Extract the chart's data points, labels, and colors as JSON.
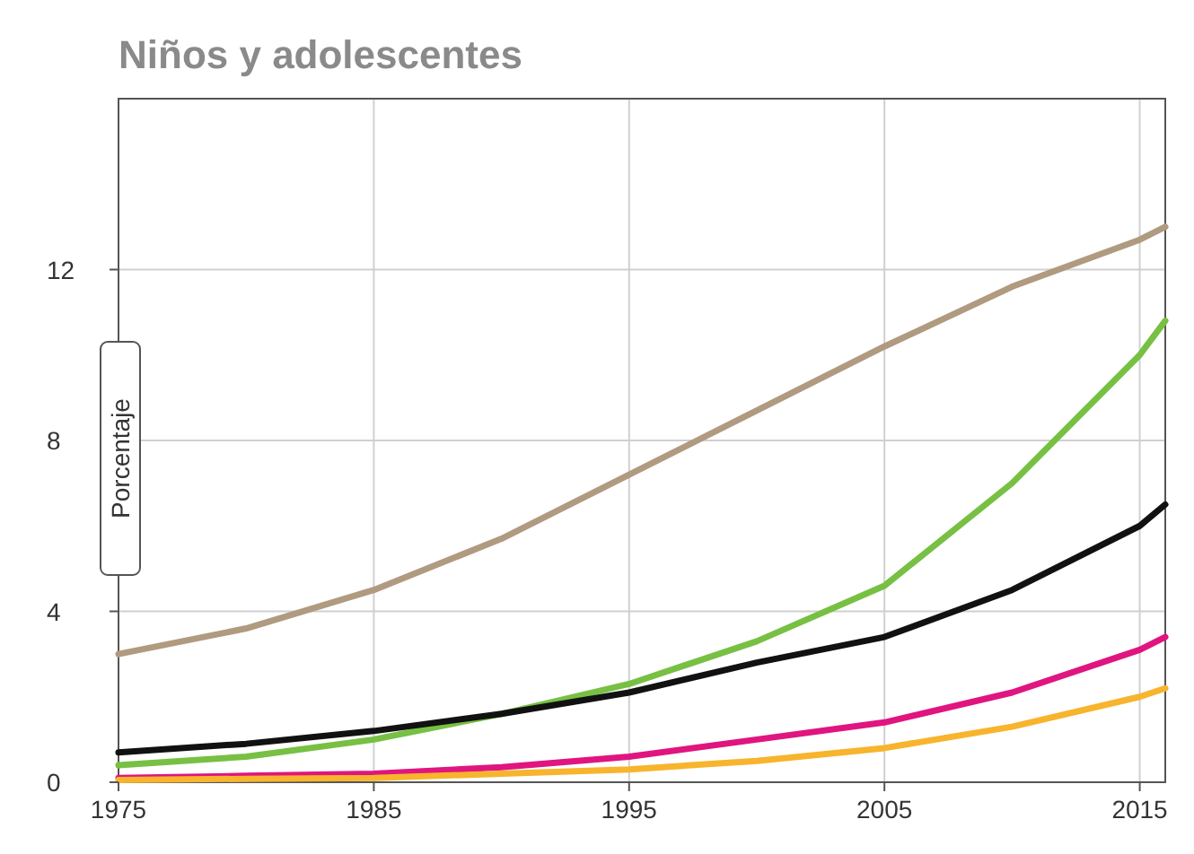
{
  "chart_data": {
    "type": "line",
    "title": "Niños y adolescentes",
    "ylabel": "Porcentaje",
    "x": [
      1975,
      1980,
      1985,
      1990,
      1995,
      2000,
      2005,
      2010,
      2015,
      2016
    ],
    "series": [
      {
        "color": "#b09a80",
        "values": [
          3.0,
          3.6,
          4.5,
          5.7,
          7.2,
          8.7,
          10.2,
          11.6,
          12.7,
          13.0
        ]
      },
      {
        "color": "#77c043",
        "values": [
          0.4,
          0.6,
          1.0,
          1.6,
          2.3,
          3.3,
          4.6,
          7.0,
          10.0,
          10.8
        ]
      },
      {
        "color": "#111111",
        "values": [
          0.7,
          0.9,
          1.2,
          1.6,
          2.1,
          2.8,
          3.4,
          4.5,
          6.0,
          6.5
        ]
      },
      {
        "color": "#e0157f",
        "values": [
          0.1,
          0.15,
          0.2,
          0.35,
          0.6,
          1.0,
          1.4,
          2.1,
          3.1,
          3.4
        ]
      },
      {
        "color": "#f7b42c",
        "values": [
          0.05,
          0.08,
          0.1,
          0.2,
          0.3,
          0.5,
          0.8,
          1.3,
          2.0,
          2.2
        ]
      }
    ],
    "xlim": [
      1975,
      2016
    ],
    "xticks": [
      1975,
      1985,
      1995,
      2005,
      2015
    ],
    "ylim": [
      0,
      16
    ],
    "yticks": [
      0,
      4,
      8,
      12
    ],
    "grid": true,
    "marker": "none",
    "line_style": "solid"
  }
}
